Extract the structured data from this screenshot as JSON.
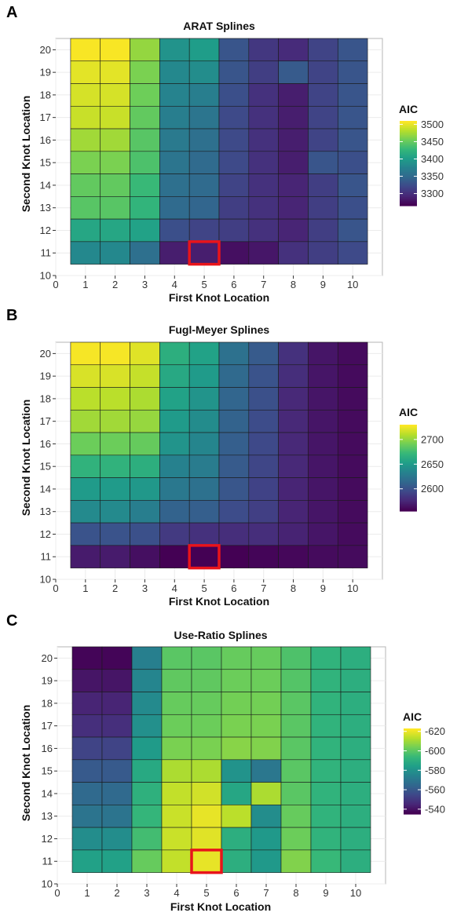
{
  "chart_data": [
    {
      "type": "heatmap",
      "panel_label": "A",
      "title": "ARAT Splines",
      "xlabel": "First Knot Location",
      "ylabel": "Second Knot Location",
      "xlim": [
        0,
        11
      ],
      "ylim": [
        10,
        20.5
      ],
      "x_ticks": [
        0,
        1,
        2,
        3,
        4,
        5,
        6,
        7,
        8,
        9,
        10
      ],
      "y_ticks": [
        10,
        11,
        12,
        13,
        14,
        15,
        16,
        17,
        18,
        19,
        20
      ],
      "x": [
        1,
        2,
        3,
        4,
        5,
        6,
        7,
        8,
        9,
        10
      ],
      "y": [
        20,
        19,
        18,
        17,
        16,
        15,
        14,
        13,
        12,
        11
      ],
      "values": [
        [
          3508,
          3508,
          3470,
          3390,
          3400,
          3330,
          3305,
          3295,
          3315,
          3330
        ],
        [
          3500,
          3500,
          3460,
          3380,
          3385,
          3330,
          3310,
          3335,
          3315,
          3330
        ],
        [
          3495,
          3495,
          3455,
          3375,
          3370,
          3325,
          3300,
          3285,
          3315,
          3330
        ],
        [
          3490,
          3490,
          3450,
          3370,
          3360,
          3320,
          3300,
          3285,
          3315,
          3330
        ],
        [
          3475,
          3475,
          3445,
          3365,
          3355,
          3320,
          3300,
          3285,
          3315,
          3330
        ],
        [
          3460,
          3460,
          3440,
          3360,
          3350,
          3320,
          3300,
          3285,
          3330,
          3325
        ],
        [
          3450,
          3450,
          3430,
          3355,
          3350,
          3315,
          3300,
          3290,
          3310,
          3330
        ],
        [
          3445,
          3445,
          3425,
          3350,
          3345,
          3310,
          3300,
          3290,
          3310,
          3325
        ],
        [
          3410,
          3410,
          3405,
          3325,
          3315,
          3310,
          3300,
          3290,
          3310,
          3330
        ],
        [
          3380,
          3380,
          3355,
          3285,
          3285,
          3275,
          3280,
          3300,
          3310,
          3320
        ]
      ],
      "colorbar": {
        "title": "AIC",
        "ticks": [
          3300,
          3350,
          3400,
          3450,
          3500
        ],
        "range": [
          3265,
          3510
        ],
        "reversed": true
      },
      "highlight": {
        "x": 5,
        "y": 11,
        "color": "#e8141b"
      }
    },
    {
      "type": "heatmap",
      "panel_label": "B",
      "title": "Fugl-Meyer Splines",
      "xlabel": "First Knot Location",
      "ylabel": "Second Knot Location",
      "xlim": [
        0,
        11
      ],
      "ylim": [
        10,
        20.5
      ],
      "x_ticks": [
        0,
        1,
        2,
        3,
        4,
        5,
        6,
        7,
        8,
        9,
        10
      ],
      "y_ticks": [
        10,
        11,
        12,
        13,
        14,
        15,
        16,
        17,
        18,
        19,
        20
      ],
      "x": [
        1,
        2,
        3,
        4,
        5,
        6,
        7,
        8,
        9,
        10
      ],
      "y": [
        20,
        19,
        18,
        17,
        16,
        15,
        14,
        13,
        12,
        11
      ],
      "values": [
        [
          2728,
          2728,
          2722,
          2665,
          2655,
          2620,
          2605,
          2580,
          2565,
          2560
        ],
        [
          2720,
          2720,
          2715,
          2660,
          2650,
          2615,
          2600,
          2578,
          2565,
          2560
        ],
        [
          2712,
          2712,
          2708,
          2655,
          2645,
          2612,
          2598,
          2575,
          2565,
          2560
        ],
        [
          2705,
          2705,
          2702,
          2650,
          2640,
          2610,
          2596,
          2575,
          2565,
          2560
        ],
        [
          2690,
          2690,
          2688,
          2645,
          2635,
          2608,
          2594,
          2575,
          2565,
          2560
        ],
        [
          2668,
          2668,
          2665,
          2632,
          2628,
          2605,
          2592,
          2575,
          2565,
          2560
        ],
        [
          2650,
          2650,
          2648,
          2625,
          2620,
          2602,
          2590,
          2573,
          2565,
          2560
        ],
        [
          2638,
          2638,
          2630,
          2610,
          2608,
          2596,
          2588,
          2573,
          2565,
          2560
        ],
        [
          2600,
          2600,
          2598,
          2585,
          2580,
          2578,
          2578,
          2572,
          2565,
          2560
        ],
        [
          2568,
          2568,
          2562,
          2555,
          2555,
          2555,
          2557,
          2558,
          2560,
          2560
        ]
      ],
      "colorbar": {
        "title": "AIC",
        "ticks": [
          2600,
          2650,
          2700
        ],
        "range": [
          2555,
          2730
        ],
        "reversed": true
      },
      "highlight": {
        "x": 5,
        "y": 11,
        "color": "#e8141b"
      }
    },
    {
      "type": "heatmap",
      "panel_label": "C",
      "title": "Use-Ratio Splines",
      "xlabel": "First Knot Location",
      "ylabel": "Second Knot Location",
      "xlim": [
        0,
        11
      ],
      "ylim": [
        10,
        20.5
      ],
      "x_ticks": [
        0,
        1,
        2,
        3,
        4,
        5,
        6,
        7,
        8,
        9,
        10
      ],
      "y_ticks": [
        10,
        11,
        12,
        13,
        14,
        15,
        16,
        17,
        18,
        19,
        20
      ],
      "x": [
        1,
        2,
        3,
        4,
        5,
        6,
        7,
        8,
        9,
        10
      ],
      "y": [
        20,
        19,
        18,
        17,
        16,
        15,
        14,
        13,
        12,
        11
      ],
      "values": [
        [
          -536,
          -536,
          -573,
          -600,
          -600,
          -602,
          -602,
          -598,
          -592,
          -590
        ],
        [
          -540,
          -540,
          -575,
          -601,
          -601,
          -603,
          -603,
          -599,
          -592,
          -590
        ],
        [
          -544,
          -544,
          -577,
          -602,
          -602,
          -604,
          -604,
          -600,
          -592,
          -590
        ],
        [
          -547,
          -547,
          -579,
          -603,
          -603,
          -605,
          -605,
          -600,
          -592,
          -590
        ],
        [
          -553,
          -553,
          -583,
          -605,
          -605,
          -607,
          -606,
          -600,
          -592,
          -590
        ],
        [
          -560,
          -560,
          -588,
          -612,
          -612,
          -580,
          -570,
          -600,
          -592,
          -590
        ],
        [
          -565,
          -565,
          -591,
          -615,
          -617,
          -587,
          -612,
          -600,
          -592,
          -590
        ],
        [
          -569,
          -569,
          -593,
          -616,
          -620,
          -614,
          -578,
          -602,
          -592,
          -590
        ],
        [
          -578,
          -578,
          -596,
          -616,
          -619,
          -590,
          -582,
          -603,
          -592,
          -590
        ],
        [
          -585,
          -585,
          -602,
          -615,
          -620,
          -590,
          -582,
          -606,
          -594,
          -590
        ]
      ],
      "colorbar": {
        "title": "AIC",
        "ticks": [
          -620,
          -600,
          -580,
          -560,
          -540
        ],
        "range": [
          -535,
          -623
        ],
        "reversed": false
      },
      "highlight": {
        "x": 5,
        "y": 11,
        "color": "#e8141b"
      }
    }
  ]
}
